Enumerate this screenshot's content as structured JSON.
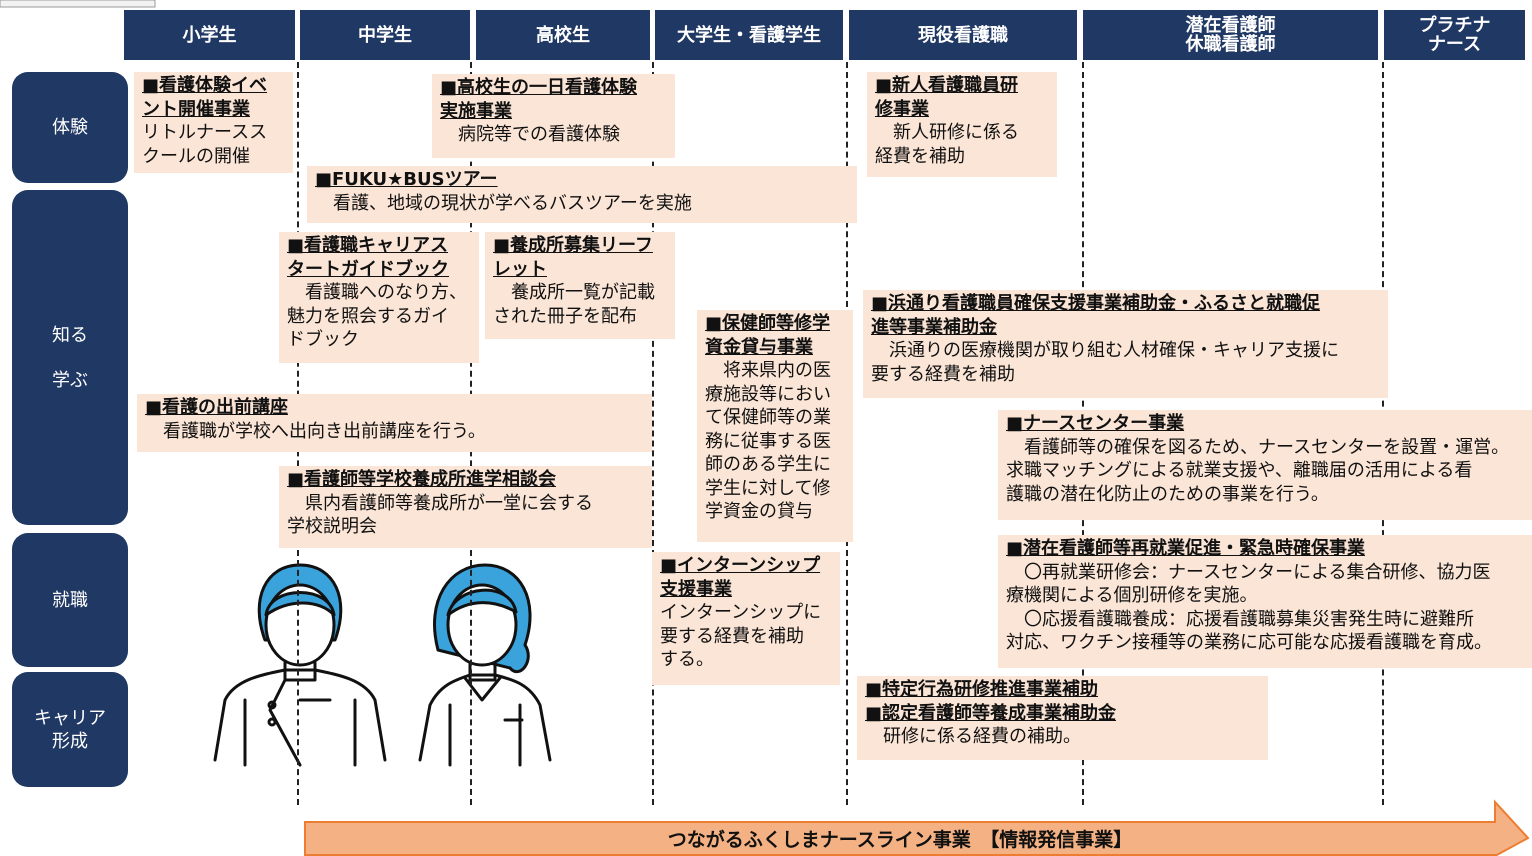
{
  "header": {
    "columns": [
      {
        "lines": [
          "小学生"
        ]
      },
      {
        "lines": [
          "中学生"
        ]
      },
      {
        "lines": [
          "高校生"
        ]
      },
      {
        "lines": [
          "大学生・看護学生"
        ]
      },
      {
        "lines": [
          "現役看護職"
        ]
      },
      {
        "lines": [
          "潜在看護師",
          "休職看護師"
        ]
      },
      {
        "lines": [
          "プラチナ",
          "ナース"
        ]
      }
    ]
  },
  "rows": [
    {
      "lines": [
        "体験"
      ]
    },
    {
      "lines": [
        "知る",
        "学ぶ"
      ]
    },
    {
      "lines": [
        "就職"
      ]
    },
    {
      "lines": [
        "キャリア",
        "形成"
      ]
    }
  ],
  "boxes": [
    {
      "title": [
        "■看護体験イベ",
        "ント開催事業"
      ],
      "body": [
        "リトルナースス",
        "クールの開催"
      ]
    },
    {
      "title": [
        "■高校生の一日看護体験",
        "実施事業"
      ],
      "body": [
        "　病院等での看護体験"
      ]
    },
    {
      "title": [
        "■新人看護職員研",
        "修事業"
      ],
      "body": [
        "　新人研修に係る",
        "経費を補助"
      ]
    },
    {
      "title": [
        "■FUKU★BUSツアー"
      ],
      "body": [
        "　看護、地域の現状が学べるバスツアーを実施"
      ]
    },
    {
      "title": [
        "■看護職キャリアス",
        "タートガイドブック"
      ],
      "body": [
        "　看護職へのなり方、",
        "魅力を照会するガイ",
        "ドブック"
      ]
    },
    {
      "title": [
        "■養成所募集リーフ",
        "レット"
      ],
      "body": [
        "　養成所一覧が記載",
        "された冊子を配布"
      ]
    },
    {
      "title": [
        "■保健師等修学",
        "資金貸与事業"
      ],
      "body": [
        "　将来県内の医",
        "療施設等におい",
        "て保健師等の業",
        "務に従事する医",
        "師のある学生に",
        "学生に対して修",
        "学資金の貸与"
      ]
    },
    {
      "title": [
        "■浜通り看護職員確保支援事業補助金・ふるさと就職促",
        "進等事業補助金"
      ],
      "body": [
        "　浜通りの医療機関が取り組む人材確保・キャリア支援に",
        "要する経費を補助"
      ]
    },
    {
      "title": [
        "■看護の出前講座"
      ],
      "body": [
        "　看護職が学校へ出向き出前講座を行う。"
      ]
    },
    {
      "title": [
        "■ナースセンター事業"
      ],
      "body": [
        "　看護師等の確保を図るため、ナースセンターを設置・運営。",
        "求職マッチングによる就業支援や、離職届の活用による看",
        "護職の潜在化防止のための事業を行う。"
      ]
    },
    {
      "title": [
        "■看護師等学校養成所進学相談会"
      ],
      "body": [
        "　県内看護師等養成所が一堂に会する",
        "学校説明会"
      ]
    },
    {
      "title": [
        "■インターンシップ",
        "支援事業"
      ],
      "body": [
        "インターンシップに",
        "要する経費を補助",
        "する。"
      ]
    },
    {
      "title": [
        "■潜在看護師等再就業促進・緊急時確保事業"
      ],
      "body": [
        "　〇再就業研修会：ナースセンターによる集合研修、協力医",
        "療機関による個別研修を実施。",
        "　〇応援看護職養成：応援看護職募集災害発生時に避難所",
        "対応、ワクチン接種等の業務に応可能な応援看護職を育成。"
      ]
    },
    {
      "title": [
        "■特定行為研修推進事業補助",
        "■認定看護師等養成事業補助金"
      ],
      "body": [
        "　研修に係る経費の補助。"
      ]
    }
  ],
  "footer": {
    "text": "つながるふくしまナースライン事業　【情報発信事業】"
  }
}
